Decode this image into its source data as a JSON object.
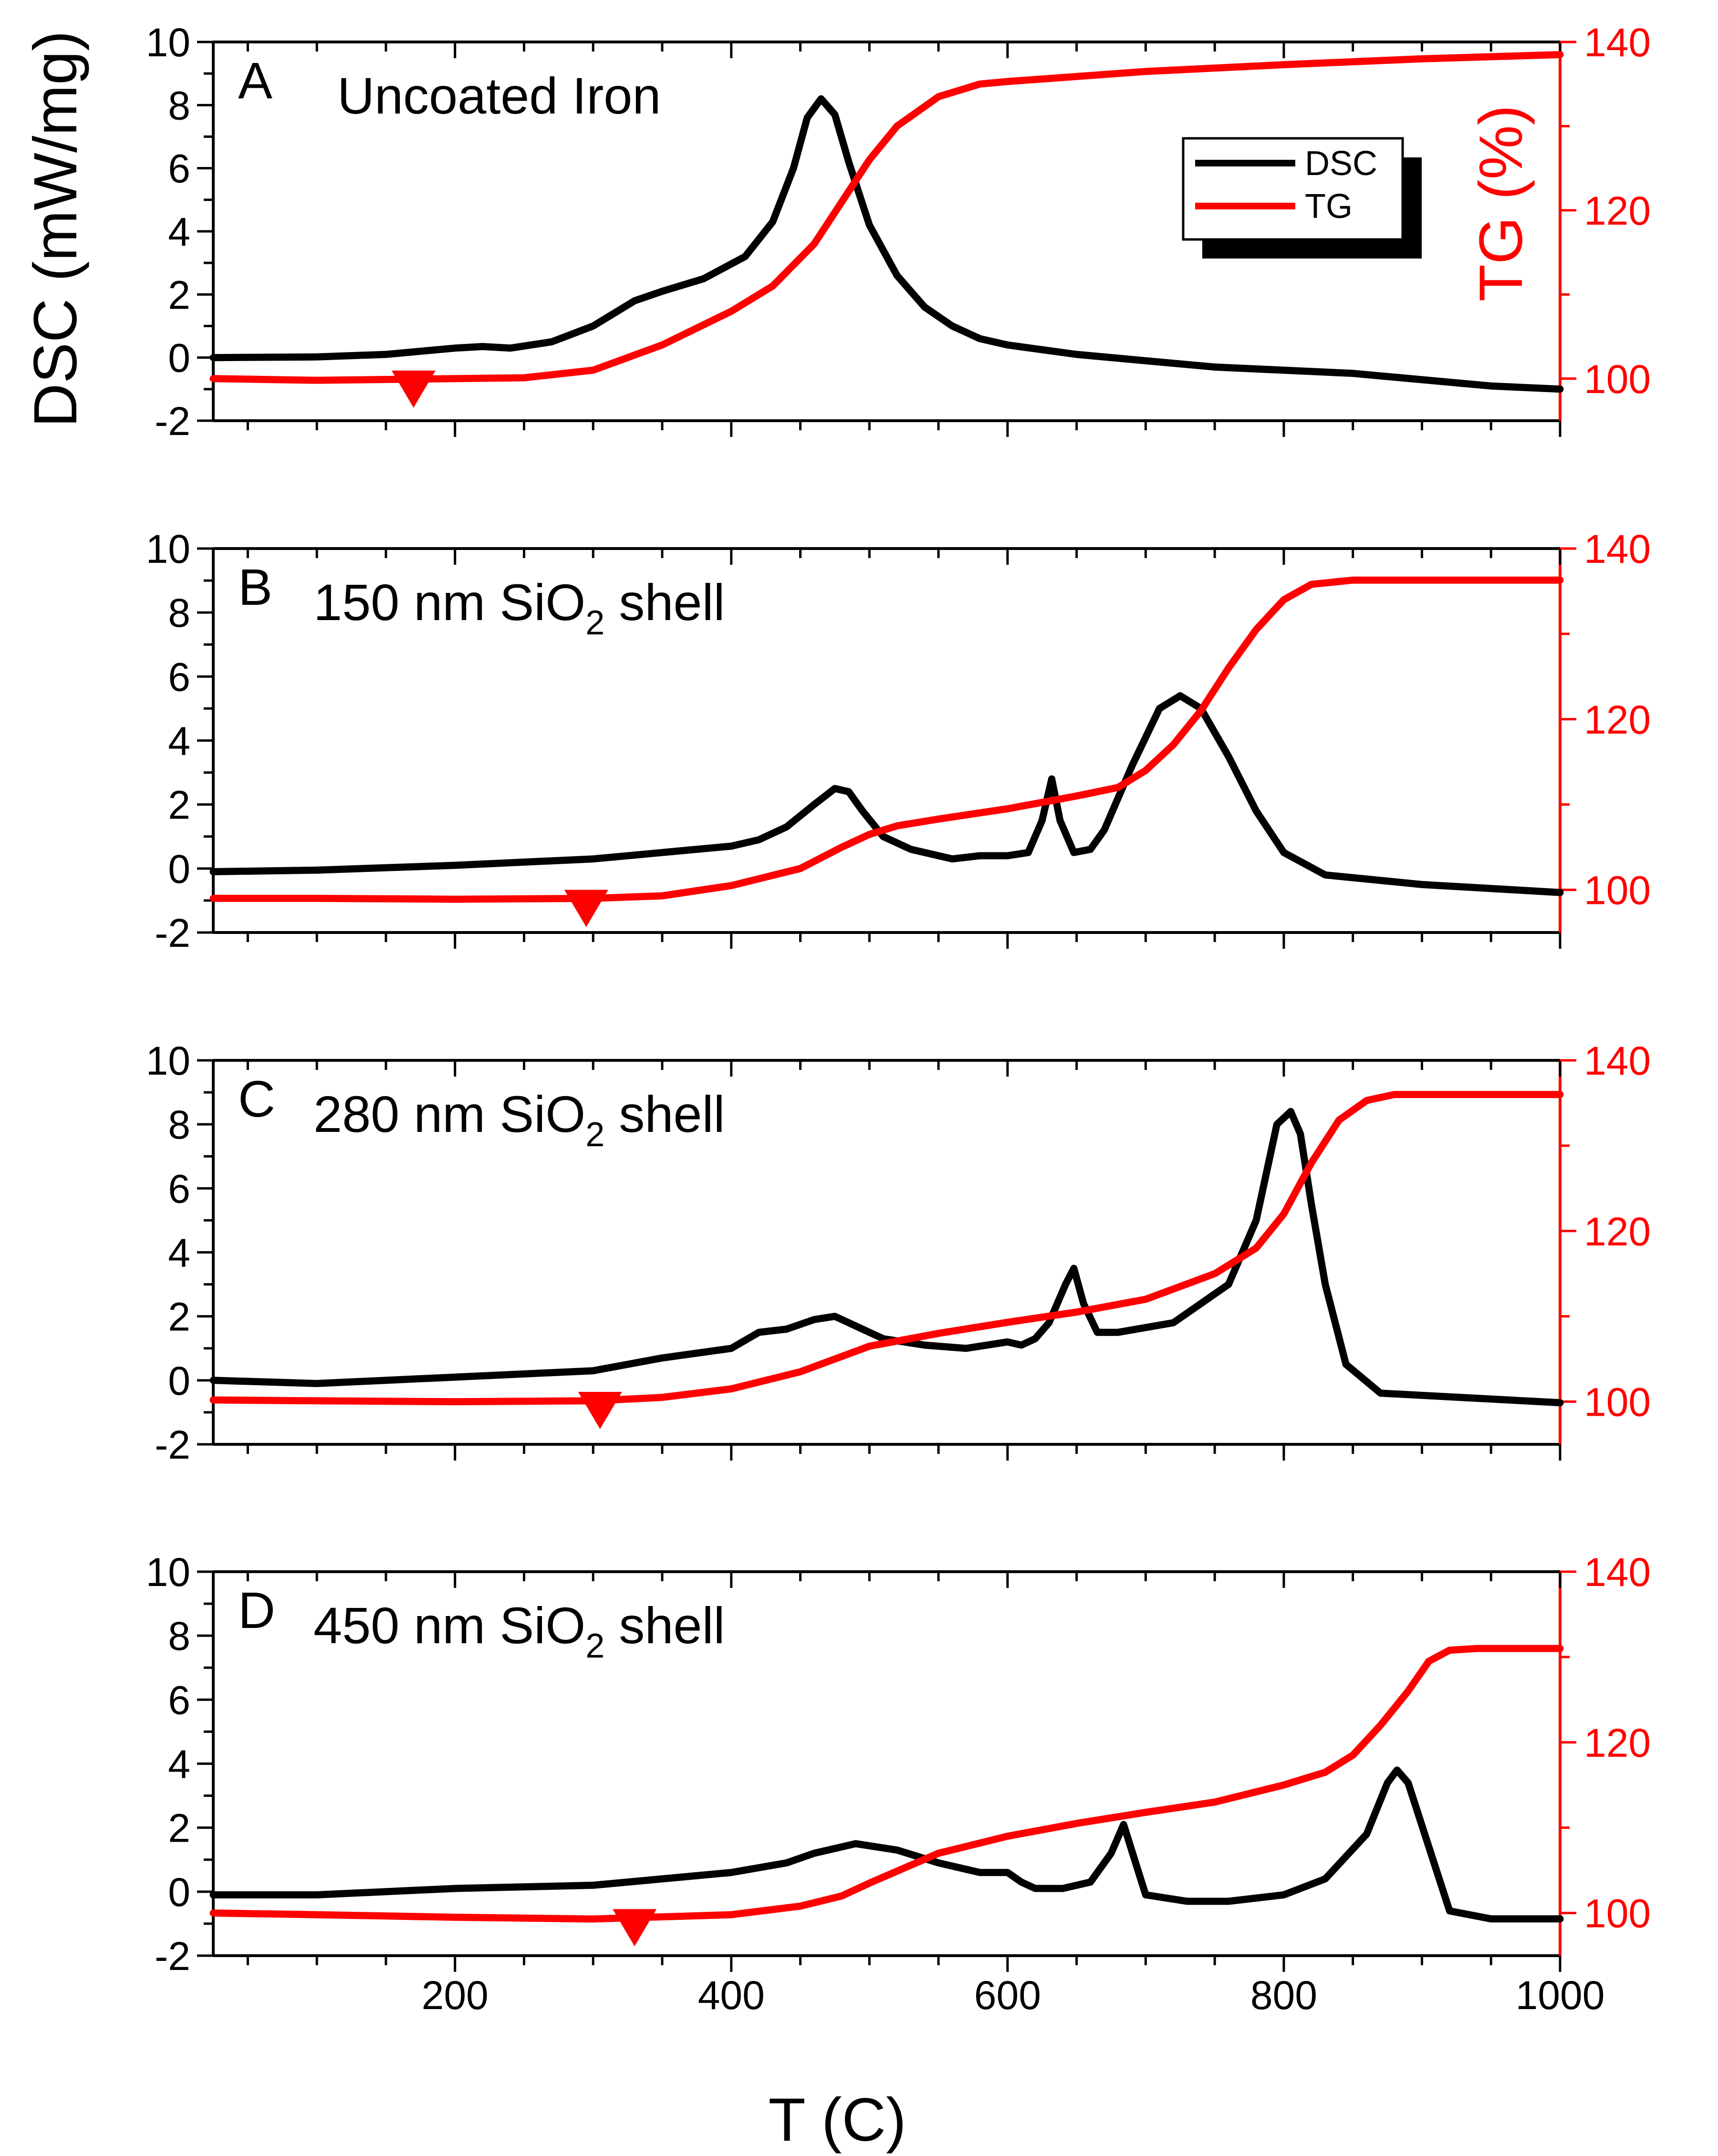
{
  "colors": {
    "dsc": "#000000",
    "tg": "#ff0000",
    "axis": "#000000"
  },
  "axes": {
    "xlabel": "T (C)",
    "ylabel_left": "DSC (mW/mg)",
    "ylabel_right": "TG (%)",
    "x_range": [
      25,
      1000
    ],
    "x_ticks": [
      200,
      400,
      600,
      800,
      1000
    ],
    "left_range": [
      -2,
      10
    ],
    "left_ticks": [
      -2,
      0,
      2,
      4,
      6,
      8,
      10
    ],
    "right_range": [
      95,
      140
    ],
    "right_ticks": [
      100,
      120,
      140
    ]
  },
  "legend": {
    "items": [
      "DSC",
      "TG"
    ]
  },
  "chart_data": [
    {
      "type": "line",
      "panel": "A",
      "title": "Uncoated Iron",
      "marker_x": 170,
      "series": [
        {
          "name": "DSC",
          "axis": "left",
          "x": [
            25,
            100,
            150,
            200,
            220,
            240,
            270,
            300,
            330,
            350,
            380,
            410,
            430,
            445,
            455,
            465,
            475,
            485,
            500,
            520,
            540,
            560,
            580,
            600,
            650,
            700,
            750,
            800,
            850,
            900,
            950,
            1000
          ],
          "y": [
            0,
            0.02,
            0.1,
            0.3,
            0.35,
            0.3,
            0.5,
            1.0,
            1.8,
            2.1,
            2.5,
            3.2,
            4.3,
            6.0,
            7.6,
            8.2,
            7.7,
            6.2,
            4.2,
            2.6,
            1.6,
            1.0,
            0.6,
            0.4,
            0.1,
            -0.1,
            -0.3,
            -0.4,
            -0.5,
            -0.7,
            -0.9,
            -1.0
          ]
        },
        {
          "name": "TG",
          "axis": "right",
          "x": [
            25,
            100,
            200,
            250,
            300,
            350,
            400,
            430,
            460,
            480,
            500,
            520,
            550,
            580,
            600,
            700,
            800,
            900,
            1000
          ],
          "y": [
            100,
            99.8,
            100,
            100.1,
            101,
            104,
            108,
            111,
            116,
            121,
            126,
            130,
            133.5,
            135,
            135.3,
            136.5,
            137.3,
            138,
            138.5
          ]
        }
      ]
    },
    {
      "type": "line",
      "panel": "B",
      "title": "150 nm SiO",
      "title_sub": "2",
      "title_suffix": " shell",
      "marker_x": 295,
      "series": [
        {
          "name": "DSC",
          "axis": "left",
          "x": [
            25,
            100,
            200,
            300,
            350,
            400,
            420,
            440,
            460,
            475,
            485,
            495,
            510,
            530,
            560,
            580,
            600,
            615,
            625,
            632,
            638,
            648,
            660,
            670,
            690,
            710,
            725,
            740,
            760,
            780,
            800,
            830,
            900,
            1000
          ],
          "y": [
            -0.1,
            -0.05,
            0.1,
            0.3,
            0.5,
            0.7,
            0.9,
            1.3,
            2.0,
            2.5,
            2.4,
            1.8,
            1.0,
            0.6,
            0.3,
            0.4,
            0.4,
            0.5,
            1.5,
            2.8,
            1.5,
            0.5,
            0.6,
            1.2,
            3.2,
            5.0,
            5.4,
            5.0,
            3.5,
            1.8,
            0.5,
            -0.2,
            -0.5,
            -0.75
          ]
        },
        {
          "name": "TG",
          "axis": "right",
          "x": [
            25,
            100,
            200,
            300,
            350,
            400,
            450,
            480,
            500,
            520,
            550,
            600,
            650,
            680,
            700,
            720,
            740,
            760,
            780,
            800,
            820,
            850,
            900,
            1000
          ],
          "y": [
            99,
            99,
            98.9,
            99,
            99.3,
            100.5,
            102.5,
            105,
            106.5,
            107.5,
            108.3,
            109.5,
            111,
            112,
            114,
            117,
            121,
            126,
            130.5,
            134,
            135.8,
            136.3,
            136.3,
            136.3
          ]
        }
      ]
    },
    {
      "type": "line",
      "panel": "C",
      "title": "280 nm SiO",
      "title_sub": "2",
      "title_suffix": " shell",
      "marker_x": 305,
      "series": [
        {
          "name": "DSC",
          "axis": "left",
          "x": [
            25,
            100,
            200,
            300,
            350,
            400,
            420,
            440,
            460,
            475,
            490,
            510,
            540,
            570,
            600,
            610,
            620,
            630,
            642,
            648,
            655,
            665,
            680,
            720,
            760,
            780,
            795,
            805,
            812,
            820,
            830,
            845,
            870,
            1000
          ],
          "y": [
            0,
            -0.1,
            0.1,
            0.3,
            0.7,
            1.0,
            1.5,
            1.6,
            1.9,
            2.0,
            1.7,
            1.3,
            1.1,
            1.0,
            1.2,
            1.1,
            1.3,
            1.8,
            3.0,
            3.5,
            2.4,
            1.5,
            1.5,
            1.8,
            3.0,
            5.0,
            8.0,
            8.4,
            7.7,
            5.5,
            3.0,
            0.5,
            -0.4,
            -0.7
          ]
        },
        {
          "name": "TG",
          "axis": "right",
          "x": [
            25,
            100,
            200,
            300,
            350,
            400,
            450,
            500,
            550,
            600,
            650,
            700,
            750,
            780,
            800,
            820,
            840,
            860,
            880,
            900,
            1000
          ],
          "y": [
            100.2,
            100.1,
            100,
            100.1,
            100.5,
            101.5,
            103.5,
            106.5,
            108,
            109.3,
            110.5,
            112,
            115,
            118,
            122,
            128,
            133,
            135.3,
            136,
            136,
            136
          ]
        }
      ]
    },
    {
      "type": "line",
      "panel": "D",
      "title": "450 nm SiO",
      "title_sub": "2",
      "title_suffix": " shell",
      "marker_x": 330,
      "series": [
        {
          "name": "DSC",
          "axis": "left",
          "x": [
            25,
            100,
            200,
            300,
            350,
            400,
            440,
            460,
            490,
            520,
            550,
            580,
            600,
            610,
            620,
            640,
            660,
            675,
            684,
            692,
            700,
            730,
            760,
            800,
            830,
            860,
            875,
            882,
            890,
            905,
            920,
            950,
            1000
          ],
          "y": [
            -0.1,
            -0.1,
            0.1,
            0.2,
            0.4,
            0.6,
            0.9,
            1.2,
            1.5,
            1.3,
            0.9,
            0.6,
            0.6,
            0.3,
            0.1,
            0.1,
            0.3,
            1.2,
            2.1,
            1.0,
            -0.1,
            -0.3,
            -0.3,
            -0.1,
            0.4,
            1.8,
            3.4,
            3.8,
            3.4,
            1.4,
            -0.6,
            -0.85,
            -0.85
          ]
        },
        {
          "name": "TG",
          "axis": "right",
          "x": [
            25,
            100,
            200,
            300,
            400,
            450,
            480,
            500,
            550,
            600,
            650,
            700,
            750,
            800,
            830,
            850,
            870,
            890,
            905,
            920,
            940,
            1000
          ],
          "y": [
            100,
            99.8,
            99.5,
            99.3,
            99.8,
            100.8,
            102,
            103.5,
            107,
            109,
            110.5,
            111.8,
            113,
            115,
            116.5,
            118.5,
            122,
            126,
            129.5,
            130.8,
            131,
            131
          ]
        }
      ]
    }
  ]
}
